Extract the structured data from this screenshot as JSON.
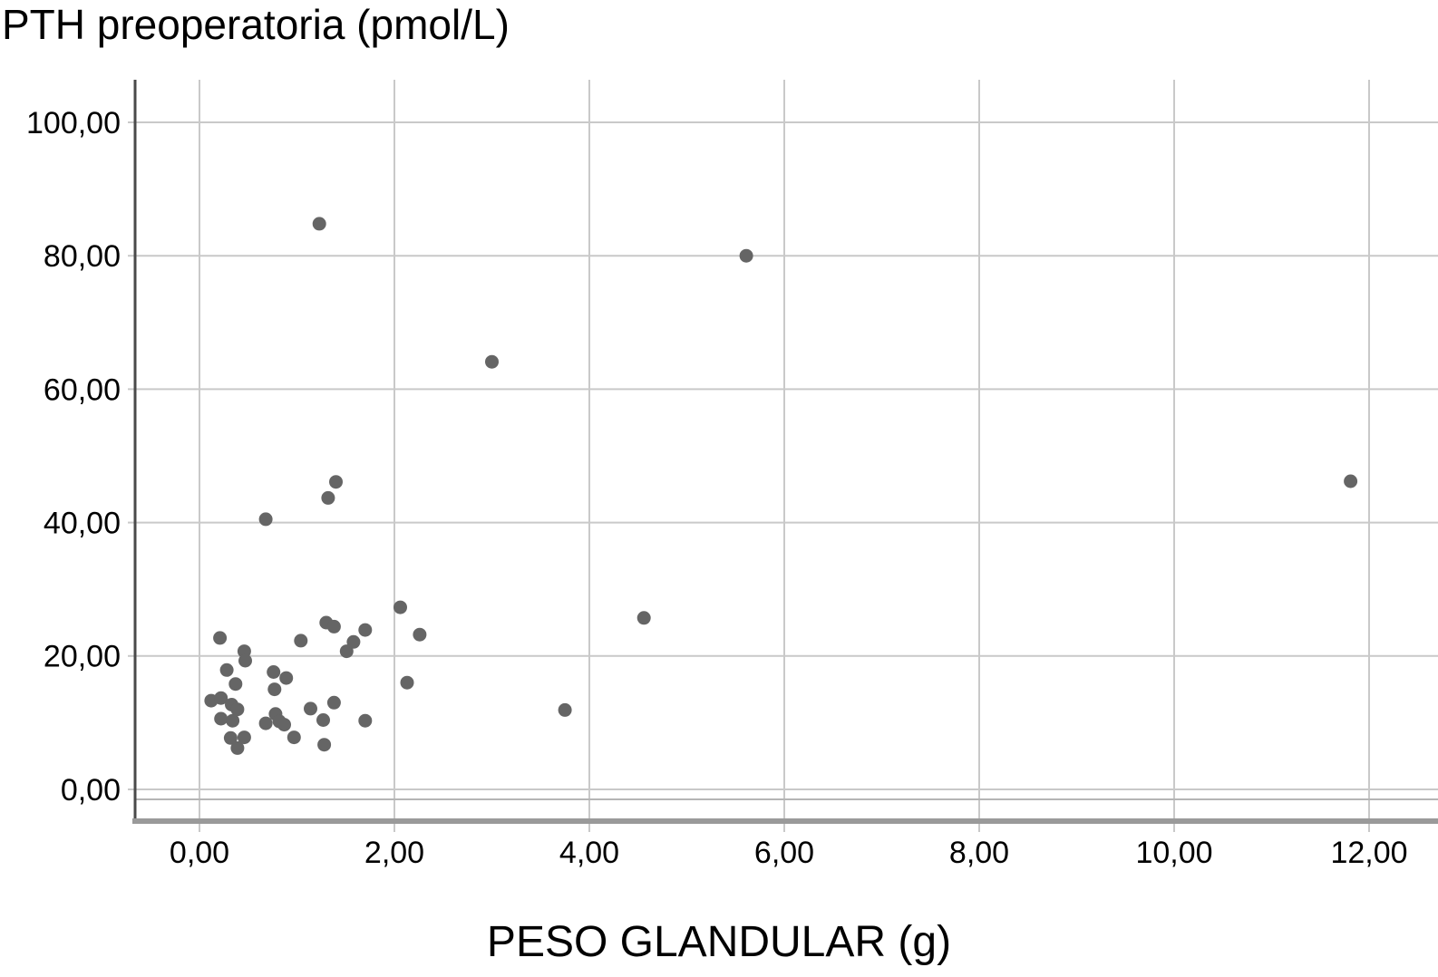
{
  "chart": {
    "title": "PTH preoperatoria (pmol/L)",
    "xlabel": "PESO GLANDULAR (g)"
  },
  "chart_data": {
    "type": "scatter",
    "title": "PTH preoperatoria (pmol/L)",
    "xlabel": "PESO GLANDULAR (g)",
    "ylabel": "PTH preoperatoria (pmol/L)",
    "x_units": "g",
    "y_units": "pmol/L",
    "xlim": [
      -0.66,
      12.7
    ],
    "ylim": [
      -1.5,
      106.4
    ],
    "x_ticks": {
      "values": [
        0,
        2,
        4,
        6,
        8,
        10,
        12
      ],
      "labels": [
        "0,00",
        "2,00",
        "4,00",
        "6,00",
        "8,00",
        "10,00",
        "12,00"
      ]
    },
    "y_ticks": {
      "values": [
        0,
        20,
        40,
        60,
        80,
        100
      ],
      "labels": [
        "0,00",
        "20,00",
        "40,00",
        "60,00",
        "80,00",
        "100,00"
      ]
    },
    "grid": true,
    "legend": null,
    "colors": {
      "point": "#656565",
      "gridline": "#c9c9c9",
      "y_spine": "#4a4a4a",
      "x_spine": "#9a9a9a",
      "frame_line": "#b5b5b5",
      "text": "#000000"
    },
    "point_radius_px": 7.5,
    "points": [
      [
        0.12,
        13.3
      ],
      [
        0.21,
        22.7
      ],
      [
        0.22,
        13.7
      ],
      [
        0.22,
        10.6
      ],
      [
        0.28,
        17.9
      ],
      [
        0.32,
        7.7
      ],
      [
        0.33,
        12.7
      ],
      [
        0.34,
        10.3
      ],
      [
        0.37,
        15.8
      ],
      [
        0.39,
        12.0
      ],
      [
        0.39,
        6.2
      ],
      [
        0.46,
        20.7
      ],
      [
        0.46,
        7.8
      ],
      [
        0.47,
        19.3
      ],
      [
        0.68,
        40.5
      ],
      [
        0.68,
        9.9
      ],
      [
        0.76,
        17.6
      ],
      [
        0.77,
        15.0
      ],
      [
        0.78,
        11.3
      ],
      [
        0.82,
        10.2
      ],
      [
        0.87,
        9.7
      ],
      [
        0.89,
        16.7
      ],
      [
        0.97,
        7.8
      ],
      [
        1.04,
        22.3
      ],
      [
        1.14,
        12.1
      ],
      [
        1.23,
        84.8
      ],
      [
        1.27,
        10.4
      ],
      [
        1.28,
        6.7
      ],
      [
        1.3,
        25.0
      ],
      [
        1.32,
        43.7
      ],
      [
        1.38,
        24.4
      ],
      [
        1.38,
        13.0
      ],
      [
        1.4,
        46.1
      ],
      [
        1.51,
        20.7
      ],
      [
        1.58,
        22.1
      ],
      [
        1.7,
        23.9
      ],
      [
        1.7,
        10.3
      ],
      [
        2.06,
        27.3
      ],
      [
        2.13,
        16.0
      ],
      [
        2.26,
        23.2
      ],
      [
        3.0,
        64.1
      ],
      [
        3.75,
        11.9
      ],
      [
        4.56,
        25.7
      ],
      [
        5.61,
        80.0
      ],
      [
        11.81,
        46.2
      ]
    ]
  }
}
